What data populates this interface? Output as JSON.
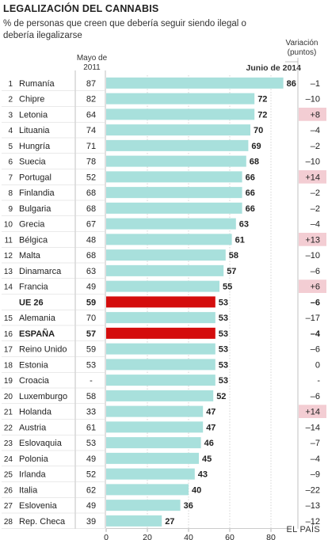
{
  "title": "LEGALIZACIÓN DEL CANNABIS",
  "subtitle": "% de personas que creen que debería seguir siendo ilegal o debería ilegalizarse",
  "headers": {
    "may2011": "Mayo de 2011",
    "june2014": "Junio de 2014",
    "variation": "Variación (puntos)"
  },
  "source": "EL PAÍS",
  "colors": {
    "bar": "#a8e0dc",
    "highlight_bar": "#d40d0d",
    "variation_bg": "#f3cdd3",
    "text": "#222222"
  },
  "chart_data": {
    "type": "bar",
    "orientation": "horizontal",
    "xlim": [
      0,
      90
    ],
    "x_ticks": [
      "0",
      "20",
      "40",
      "60",
      "80"
    ],
    "rows": [
      {
        "rank": "1",
        "name": "Rumanía",
        "may2011": "87",
        "jun2014": 86,
        "variation": "–1",
        "bold": false,
        "highlight": false,
        "var_bg": false
      },
      {
        "rank": "2",
        "name": "Chipre",
        "may2011": "82",
        "jun2014": 72,
        "variation": "–10",
        "bold": false,
        "highlight": false,
        "var_bg": false
      },
      {
        "rank": "3",
        "name": "Letonia",
        "may2011": "64",
        "jun2014": 72,
        "variation": "+8",
        "bold": false,
        "highlight": false,
        "var_bg": true
      },
      {
        "rank": "4",
        "name": "Lituania",
        "may2011": "74",
        "jun2014": 70,
        "variation": "–4",
        "bold": false,
        "highlight": false,
        "var_bg": false
      },
      {
        "rank": "5",
        "name": "Hungría",
        "may2011": "71",
        "jun2014": 69,
        "variation": "–2",
        "bold": false,
        "highlight": false,
        "var_bg": false
      },
      {
        "rank": "6",
        "name": "Suecia",
        "may2011": "78",
        "jun2014": 68,
        "variation": "–10",
        "bold": false,
        "highlight": false,
        "var_bg": false
      },
      {
        "rank": "7",
        "name": "Portugal",
        "may2011": "52",
        "jun2014": 66,
        "variation": "+14",
        "bold": false,
        "highlight": false,
        "var_bg": true
      },
      {
        "rank": "8",
        "name": "Finlandia",
        "may2011": "68",
        "jun2014": 66,
        "variation": "–2",
        "bold": false,
        "highlight": false,
        "var_bg": false
      },
      {
        "rank": "9",
        "name": "Bulgaria",
        "may2011": "68",
        "jun2014": 66,
        "variation": "–2",
        "bold": false,
        "highlight": false,
        "var_bg": false
      },
      {
        "rank": "10",
        "name": "Grecia",
        "may2011": "67",
        "jun2014": 63,
        "variation": "–4",
        "bold": false,
        "highlight": false,
        "var_bg": false
      },
      {
        "rank": "11",
        "name": "Bélgica",
        "may2011": "48",
        "jun2014": 61,
        "variation": "+13",
        "bold": false,
        "highlight": false,
        "var_bg": true
      },
      {
        "rank": "12",
        "name": "Malta",
        "may2011": "68",
        "jun2014": 58,
        "variation": "–10",
        "bold": false,
        "highlight": false,
        "var_bg": false
      },
      {
        "rank": "13",
        "name": "Dinamarca",
        "may2011": "63",
        "jun2014": 57,
        "variation": "–6",
        "bold": false,
        "highlight": false,
        "var_bg": false
      },
      {
        "rank": "14",
        "name": "Francia",
        "may2011": "49",
        "jun2014": 55,
        "variation": "+6",
        "bold": false,
        "highlight": false,
        "var_bg": true
      },
      {
        "rank": "",
        "name": "UE 26",
        "may2011": "59",
        "jun2014": 53,
        "variation": "–6",
        "bold": true,
        "highlight": true,
        "var_bg": false
      },
      {
        "rank": "15",
        "name": "Alemania",
        "may2011": "70",
        "jun2014": 53,
        "variation": "–17",
        "bold": false,
        "highlight": false,
        "var_bg": false
      },
      {
        "rank": "16",
        "name": "ESPAÑA",
        "may2011": "57",
        "jun2014": 53,
        "variation": "–4",
        "bold": true,
        "highlight": true,
        "var_bg": false
      },
      {
        "rank": "17",
        "name": "Reino Unido",
        "may2011": "59",
        "jun2014": 53,
        "variation": "–6",
        "bold": false,
        "highlight": false,
        "var_bg": false
      },
      {
        "rank": "18",
        "name": "Estonia",
        "may2011": "53",
        "jun2014": 53,
        "variation": "0",
        "bold": false,
        "highlight": false,
        "var_bg": false
      },
      {
        "rank": "19",
        "name": "Croacia",
        "may2011": "-",
        "jun2014": 53,
        "variation": "-",
        "bold": false,
        "highlight": false,
        "var_bg": false
      },
      {
        "rank": "20",
        "name": "Luxemburgo",
        "may2011": "58",
        "jun2014": 52,
        "variation": "–6",
        "bold": false,
        "highlight": false,
        "var_bg": false
      },
      {
        "rank": "21",
        "name": "Holanda",
        "may2011": "33",
        "jun2014": 47,
        "variation": "+14",
        "bold": false,
        "highlight": false,
        "var_bg": true
      },
      {
        "rank": "22",
        "name": "Austria",
        "may2011": "61",
        "jun2014": 47,
        "variation": "–14",
        "bold": false,
        "highlight": false,
        "var_bg": false
      },
      {
        "rank": "23",
        "name": "Eslovaquia",
        "may2011": "53",
        "jun2014": 46,
        "variation": "–7",
        "bold": false,
        "highlight": false,
        "var_bg": false
      },
      {
        "rank": "24",
        "name": "Polonia",
        "may2011": "49",
        "jun2014": 45,
        "variation": "–4",
        "bold": false,
        "highlight": false,
        "var_bg": false
      },
      {
        "rank": "25",
        "name": "Irlanda",
        "may2011": "52",
        "jun2014": 43,
        "variation": "–9",
        "bold": false,
        "highlight": false,
        "var_bg": false
      },
      {
        "rank": "26",
        "name": "Italia",
        "may2011": "62",
        "jun2014": 40,
        "variation": "–22",
        "bold": false,
        "highlight": false,
        "var_bg": false
      },
      {
        "rank": "27",
        "name": "Eslovenia",
        "may2011": "49",
        "jun2014": 36,
        "variation": "–13",
        "bold": false,
        "highlight": false,
        "var_bg": false
      },
      {
        "rank": "28",
        "name": "Rep. Checa",
        "may2011": "39",
        "jun2014": 27,
        "variation": "–12",
        "bold": false,
        "highlight": false,
        "var_bg": false
      }
    ]
  }
}
